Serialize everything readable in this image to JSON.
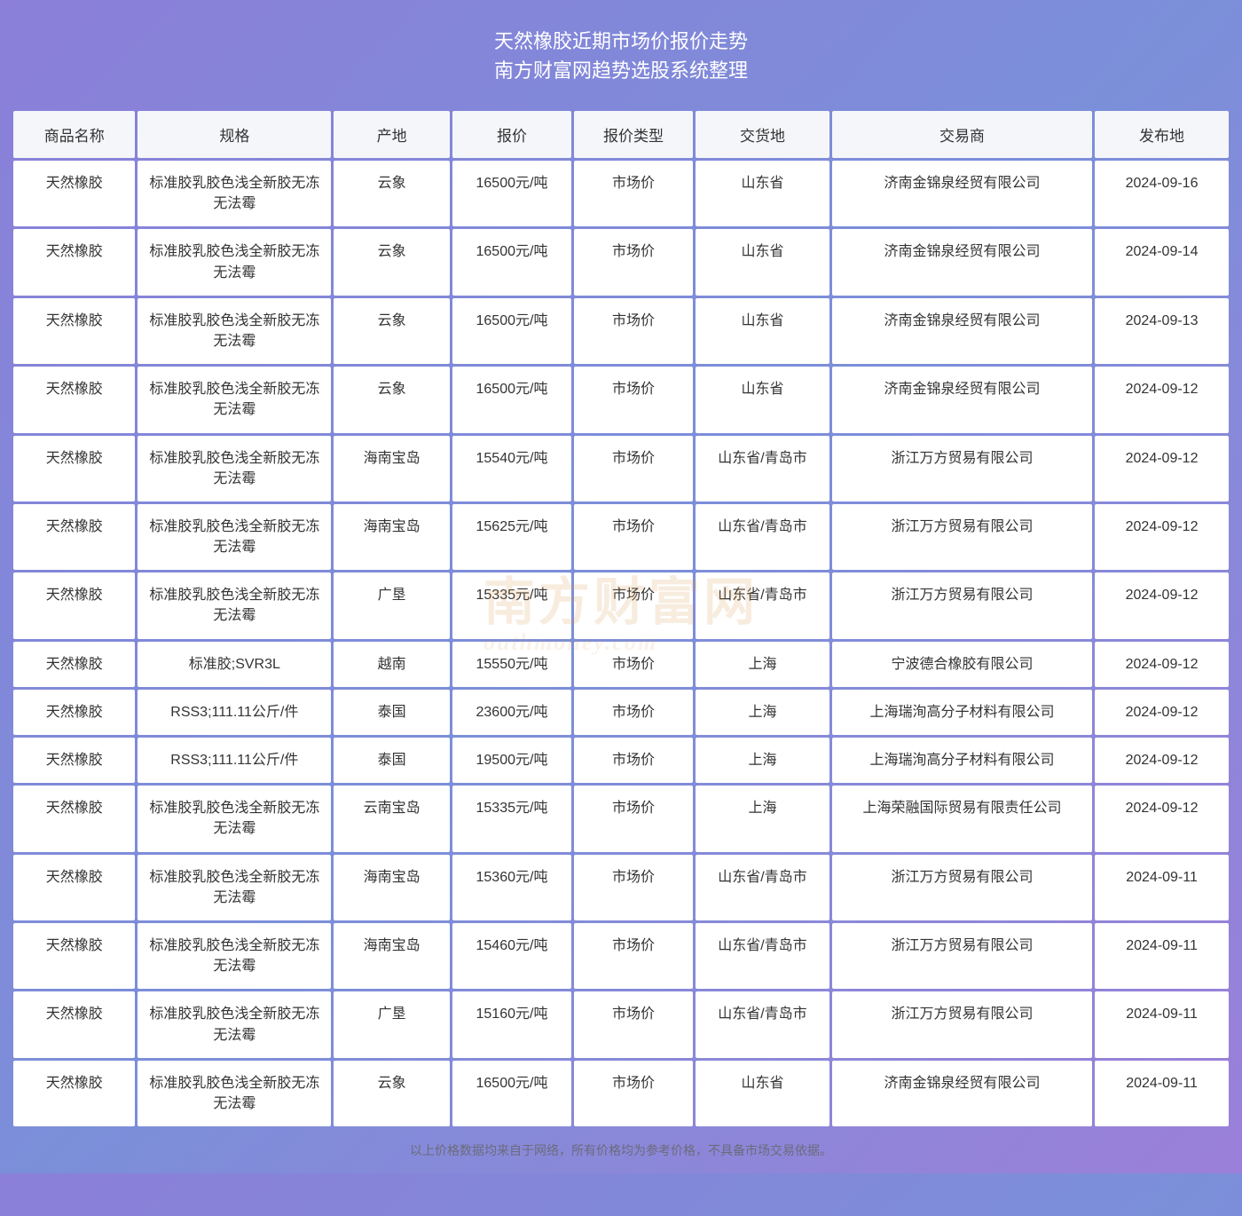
{
  "title_line1": "天然橡胶近期市场价报价走势",
  "title_line2": "南方财富网趋势选股系统整理",
  "footnote": "以上价格数据均来自于网络，所有价格均为参考价格，不具备市场交易依据。",
  "watermark_main": "南方财富网",
  "watermark_sub": "outhmoney.com",
  "colors": {
    "header_bg": "#f5f6fa",
    "cell_bg": "#ffffff",
    "text": "#333333",
    "footnote_text": "#6b6b7a",
    "page_gradient_from": "#8b7fd9",
    "page_gradient_to": "#9b7fd9",
    "watermark": "rgba(210,150,70,0.18)"
  },
  "columns": [
    {
      "key": "name",
      "label": "商品名称",
      "class": "col-name"
    },
    {
      "key": "spec",
      "label": "规格",
      "class": "col-spec"
    },
    {
      "key": "origin",
      "label": "产地",
      "class": "col-origin"
    },
    {
      "key": "price",
      "label": "报价",
      "class": "col-price"
    },
    {
      "key": "ptype",
      "label": "报价类型",
      "class": "col-ptype"
    },
    {
      "key": "dloc",
      "label": "交货地",
      "class": "col-dloc"
    },
    {
      "key": "dealer",
      "label": "交易商",
      "class": "col-dealer"
    },
    {
      "key": "date",
      "label": "发布地",
      "class": "col-date"
    }
  ],
  "rows": [
    {
      "name": "天然橡胶",
      "spec": "标准胶乳胶色浅全新胶无冻无法霉",
      "origin": "云象",
      "price": "16500元/吨",
      "ptype": "市场价",
      "dloc": "山东省",
      "dealer": "济南金锦泉经贸有限公司",
      "date": "2024-09-16"
    },
    {
      "name": "天然橡胶",
      "spec": "标准胶乳胶色浅全新胶无冻无法霉",
      "origin": "云象",
      "price": "16500元/吨",
      "ptype": "市场价",
      "dloc": "山东省",
      "dealer": "济南金锦泉经贸有限公司",
      "date": "2024-09-14"
    },
    {
      "name": "天然橡胶",
      "spec": "标准胶乳胶色浅全新胶无冻无法霉",
      "origin": "云象",
      "price": "16500元/吨",
      "ptype": "市场价",
      "dloc": "山东省",
      "dealer": "济南金锦泉经贸有限公司",
      "date": "2024-09-13"
    },
    {
      "name": "天然橡胶",
      "spec": "标准胶乳胶色浅全新胶无冻无法霉",
      "origin": "云象",
      "price": "16500元/吨",
      "ptype": "市场价",
      "dloc": "山东省",
      "dealer": "济南金锦泉经贸有限公司",
      "date": "2024-09-12"
    },
    {
      "name": "天然橡胶",
      "spec": "标准胶乳胶色浅全新胶无冻无法霉",
      "origin": "海南宝岛",
      "price": "15540元/吨",
      "ptype": "市场价",
      "dloc": "山东省/青岛市",
      "dealer": "浙江万方贸易有限公司",
      "date": "2024-09-12"
    },
    {
      "name": "天然橡胶",
      "spec": "标准胶乳胶色浅全新胶无冻无法霉",
      "origin": "海南宝岛",
      "price": "15625元/吨",
      "ptype": "市场价",
      "dloc": "山东省/青岛市",
      "dealer": "浙江万方贸易有限公司",
      "date": "2024-09-12"
    },
    {
      "name": "天然橡胶",
      "spec": "标准胶乳胶色浅全新胶无冻无法霉",
      "origin": "广垦",
      "price": "15335元/吨",
      "ptype": "市场价",
      "dloc": "山东省/青岛市",
      "dealer": "浙江万方贸易有限公司",
      "date": "2024-09-12"
    },
    {
      "name": "天然橡胶",
      "spec": "标准胶;SVR3L",
      "origin": "越南",
      "price": "15550元/吨",
      "ptype": "市场价",
      "dloc": "上海",
      "dealer": "宁波德合橡胶有限公司",
      "date": "2024-09-12"
    },
    {
      "name": "天然橡胶",
      "spec": "RSS3;111.11公斤/件",
      "origin": "泰国",
      "price": "23600元/吨",
      "ptype": "市场价",
      "dloc": "上海",
      "dealer": "上海瑞洵高分子材料有限公司",
      "date": "2024-09-12"
    },
    {
      "name": "天然橡胶",
      "spec": "RSS3;111.11公斤/件",
      "origin": "泰国",
      "price": "19500元/吨",
      "ptype": "市场价",
      "dloc": "上海",
      "dealer": "上海瑞洵高分子材料有限公司",
      "date": "2024-09-12"
    },
    {
      "name": "天然橡胶",
      "spec": "标准胶乳胶色浅全新胶无冻无法霉",
      "origin": "云南宝岛",
      "price": "15335元/吨",
      "ptype": "市场价",
      "dloc": "上海",
      "dealer": "上海荣融国际贸易有限责任公司",
      "date": "2024-09-12"
    },
    {
      "name": "天然橡胶",
      "spec": "标准胶乳胶色浅全新胶无冻无法霉",
      "origin": "海南宝岛",
      "price": "15360元/吨",
      "ptype": "市场价",
      "dloc": "山东省/青岛市",
      "dealer": "浙江万方贸易有限公司",
      "date": "2024-09-11"
    },
    {
      "name": "天然橡胶",
      "spec": "标准胶乳胶色浅全新胶无冻无法霉",
      "origin": "海南宝岛",
      "price": "15460元/吨",
      "ptype": "市场价",
      "dloc": "山东省/青岛市",
      "dealer": "浙江万方贸易有限公司",
      "date": "2024-09-11"
    },
    {
      "name": "天然橡胶",
      "spec": "标准胶乳胶色浅全新胶无冻无法霉",
      "origin": "广垦",
      "price": "15160元/吨",
      "ptype": "市场价",
      "dloc": "山东省/青岛市",
      "dealer": "浙江万方贸易有限公司",
      "date": "2024-09-11"
    },
    {
      "name": "天然橡胶",
      "spec": "标准胶乳胶色浅全新胶无冻无法霉",
      "origin": "云象",
      "price": "16500元/吨",
      "ptype": "市场价",
      "dloc": "山东省",
      "dealer": "济南金锦泉经贸有限公司",
      "date": "2024-09-11"
    }
  ]
}
